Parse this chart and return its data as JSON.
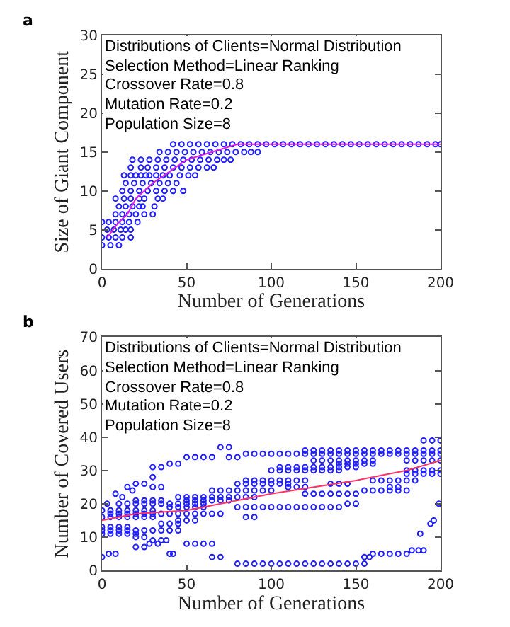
{
  "chart_data": [
    {
      "type": "scatter",
      "xlabel": "Number of Generations",
      "ylabel": "Size of Giant Component",
      "xlim": [
        0,
        200
      ],
      "ylim": [
        0,
        30
      ],
      "xticks": [
        0,
        50,
        100,
        150,
        200
      ],
      "yticks": [
        0,
        5,
        10,
        15,
        20,
        25,
        30
      ],
      "annotations": [
        "a",
        "Distributions of Clients=Normal Distribution",
        "Selection Method=Linear Ranking",
        "Crossover Rate=0.8",
        "Mutation Rate=0.2",
        "Population Size=8"
      ],
      "series": [
        {
          "marker": "circle",
          "color": "#2020ff",
          "x": [
            0,
            5,
            10,
            0,
            4,
            8,
            12,
            17,
            3,
            7,
            11,
            14,
            17,
            0,
            4,
            8,
            12,
            16,
            21,
            8,
            12,
            16,
            20,
            25,
            30,
            10,
            14,
            18,
            22,
            24,
            31,
            8,
            13,
            17,
            22,
            25,
            33,
            36,
            12,
            17,
            22,
            27,
            32,
            37,
            42,
            48,
            14,
            19,
            24,
            29,
            34,
            39,
            44,
            13,
            17,
            20,
            23,
            26,
            28,
            32,
            36,
            40,
            46,
            51,
            55,
            17,
            23,
            27,
            32,
            37,
            42,
            47,
            52,
            57,
            62,
            66,
            18,
            23,
            28,
            33,
            38,
            43,
            48,
            53,
            58,
            63,
            68,
            72,
            76,
            34,
            39,
            44,
            49,
            54,
            59,
            64,
            69,
            74,
            79,
            84,
            88,
            92,
            42,
            47,
            52,
            57,
            62,
            67,
            72,
            77,
            82,
            87,
            92,
            97,
            102,
            107,
            112,
            117,
            122,
            127,
            132,
            137,
            142,
            147,
            152,
            157,
            162,
            167,
            172,
            177,
            182,
            187,
            192,
            197,
            200
          ],
          "values": [
            3,
            3,
            3,
            4,
            4,
            4,
            4,
            4,
            5,
            5,
            5,
            5,
            5,
            6,
            6,
            6,
            6,
            6,
            6,
            7,
            7,
            7,
            7,
            7,
            7,
            8,
            8,
            8,
            8,
            8,
            8,
            9,
            9,
            9,
            9,
            9,
            9,
            9,
            10,
            10,
            10,
            10,
            10,
            10,
            10,
            10,
            11,
            11,
            11,
            11,
            11,
            11,
            11,
            12,
            12,
            12,
            12,
            12,
            12,
            12,
            12,
            12,
            12,
            12,
            12,
            13,
            13,
            13,
            13,
            13,
            13,
            13,
            13,
            13,
            13,
            13,
            14,
            14,
            14,
            14,
            14,
            14,
            14,
            14,
            14,
            14,
            14,
            14,
            14,
            15,
            15,
            15,
            15,
            15,
            15,
            15,
            15,
            15,
            15,
            15,
            15,
            15,
            16,
            16,
            16,
            16,
            16,
            16,
            16,
            16,
            16,
            16,
            16,
            16,
            16,
            16,
            16,
            16,
            16,
            16,
            16,
            16,
            16,
            16,
            16,
            16,
            16,
            16,
            16,
            16,
            16,
            16,
            16,
            16,
            16
          ]
        },
        {
          "type": "line",
          "color": "#e020e0",
          "x": [
            3,
            10,
            15,
            20,
            30,
            40,
            50,
            65,
            80,
            120,
            200
          ],
          "values": [
            4,
            6,
            7,
            9,
            11,
            12.5,
            14,
            15,
            16,
            16,
            16
          ]
        }
      ]
    },
    {
      "type": "scatter",
      "xlabel": "Number of Generations",
      "ylabel": "Number of Covered Users",
      "xlim": [
        0,
        200
      ],
      "ylim": [
        0,
        70
      ],
      "xticks": [
        0,
        50,
        100,
        150,
        200
      ],
      "yticks": [
        0,
        10,
        20,
        30,
        40,
        50,
        60,
        70
      ],
      "annotations": [
        "b",
        "Distributions of Clients=Normal Distribution",
        "Selection Method=Linear Ranking",
        "Crossover Rate=0.8",
        "Mutation Rate=0.2",
        "Population Size=8"
      ],
      "series": [
        {
          "marker": "circle",
          "color": "#2020ff",
          "x": [
            80,
            85,
            90,
            95,
            100,
            105,
            110,
            115,
            120,
            125,
            130,
            135,
            140,
            145,
            150,
            155,
            0,
            65,
            70,
            155,
            158,
            4,
            8,
            40,
            42,
            160,
            165,
            170,
            175,
            180,
            183,
            187,
            190,
            20,
            25,
            28,
            33,
            50,
            55,
            60,
            65,
            30,
            35,
            38,
            20,
            25,
            0,
            5,
            10,
            15,
            20,
            188,
            0,
            5,
            10,
            15,
            20,
            25,
            30,
            35,
            40,
            45,
            0,
            5,
            10,
            15,
            35,
            40,
            45,
            194,
            45,
            50,
            55,
            196,
            0,
            5,
            10,
            15,
            20,
            25,
            30,
            85,
            90,
            5,
            10,
            15,
            20,
            25,
            30,
            35,
            40,
            45,
            50,
            55,
            60,
            65,
            70,
            0,
            5,
            10,
            15,
            20,
            25,
            30,
            40,
            45,
            50,
            55,
            60,
            80,
            85,
            90,
            95,
            100,
            105,
            110,
            115,
            120,
            125,
            130,
            135,
            140,
            10,
            15,
            20,
            25,
            30,
            35,
            40,
            45,
            50,
            55,
            60,
            145,
            150,
            199,
            20,
            25,
            30,
            35,
            50,
            55,
            60,
            65,
            70,
            75,
            45,
            50,
            55,
            60,
            65,
            70,
            75,
            80,
            85,
            90,
            120,
            125,
            130,
            135,
            140,
            145,
            150,
            65,
            70,
            75,
            80,
            85,
            90,
            95,
            100,
            155,
            160,
            165,
            170,
            175,
            180,
            30,
            35,
            110,
            115,
            120,
            170,
            175,
            20,
            25,
            80,
            85,
            90,
            95,
            100,
            105,
            110,
            135,
            140,
            145,
            85,
            90,
            95,
            100,
            105,
            110,
            115,
            120,
            160,
            165,
            170,
            175,
            180,
            185,
            30,
            180,
            185,
            190,
            195,
            200,
            100,
            105,
            110,
            115,
            120,
            125,
            130,
            135,
            140,
            180,
            185,
            190,
            195,
            200,
            30,
            35,
            105,
            110,
            115,
            120,
            125,
            130,
            135,
            140,
            145,
            150,
            40,
            45,
            140,
            145,
            150,
            155,
            160,
            125,
            130,
            135,
            140,
            145,
            150,
            155,
            160,
            180,
            185,
            190,
            195,
            200,
            50,
            55,
            60,
            65,
            75,
            80,
            85,
            90,
            95,
            100,
            105,
            110,
            115,
            120,
            125,
            130,
            135,
            140,
            145,
            150,
            155,
            160,
            165,
            170,
            175,
            180,
            185,
            190,
            195,
            200,
            120,
            125,
            130,
            135,
            140,
            145,
            150,
            155,
            160,
            165,
            170,
            175,
            180,
            185,
            190,
            195,
            200,
            70,
            75,
            190,
            195,
            200,
            8,
            12,
            15,
            3,
            18
          ],
          "values": [
            2,
            2,
            2,
            2,
            2,
            2,
            2,
            2,
            2,
            2,
            2,
            2,
            2,
            2,
            2,
            2,
            4,
            4,
            4,
            4,
            4,
            5,
            5,
            5,
            5,
            5,
            5,
            5,
            5,
            5,
            6,
            6,
            6,
            7,
            7,
            8,
            8,
            8,
            8,
            8,
            8,
            9,
            9,
            9,
            10,
            10,
            11,
            11,
            11,
            11,
            11,
            11,
            12,
            12,
            12,
            12,
            12,
            12,
            12,
            12,
            12,
            12,
            13,
            13,
            13,
            13,
            14,
            14,
            14,
            14,
            15,
            15,
            15,
            15,
            16,
            16,
            16,
            16,
            16,
            16,
            16,
            16,
            16,
            17,
            17,
            17,
            17,
            17,
            17,
            17,
            17,
            17,
            17,
            17,
            17,
            17,
            17,
            18,
            18,
            18,
            18,
            18,
            18,
            18,
            19,
            19,
            19,
            19,
            19,
            19,
            19,
            19,
            19,
            19,
            19,
            19,
            19,
            19,
            19,
            19,
            19,
            19,
            20,
            20,
            20,
            20,
            20,
            20,
            20,
            20,
            20,
            20,
            20,
            20,
            20,
            20,
            21,
            21,
            21,
            21,
            21,
            21,
            21,
            21,
            21,
            21,
            22,
            22,
            22,
            22,
            22,
            22,
            22,
            22,
            22,
            22,
            23,
            23,
            23,
            23,
            23,
            23,
            23,
            24,
            24,
            24,
            24,
            24,
            24,
            24,
            24,
            24,
            24,
            24,
            24,
            24,
            24,
            25,
            25,
            25,
            25,
            25,
            25,
            25,
            26,
            26,
            26,
            26,
            26,
            26,
            26,
            26,
            26,
            26,
            26,
            26,
            27,
            27,
            27,
            27,
            27,
            27,
            27,
            27,
            27,
            27,
            27,
            27,
            27,
            27,
            28,
            29,
            29,
            29,
            29,
            29,
            30,
            30,
            30,
            30,
            30,
            30,
            30,
            30,
            30,
            30,
            30,
            30,
            30,
            30,
            31,
            31,
            31,
            31,
            31,
            31,
            31,
            31,
            31,
            31,
            31,
            31,
            32,
            32,
            32,
            32,
            32,
            32,
            32,
            33,
            33,
            33,
            33,
            33,
            33,
            33,
            33,
            33,
            33,
            33,
            33,
            33,
            34,
            34,
            34,
            34,
            34,
            34,
            35,
            35,
            35,
            35,
            35,
            35,
            35,
            35,
            35,
            35,
            35,
            35,
            35,
            35,
            35,
            35,
            35,
            35,
            35,
            35,
            35,
            35,
            35,
            35,
            36,
            36,
            36,
            36,
            36,
            36,
            36,
            36,
            36,
            36,
            36,
            36,
            36,
            36,
            36,
            36,
            36,
            37,
            37,
            39,
            39,
            39,
            23,
            22,
            25,
            20,
            24
          ]
        },
        {
          "type": "line",
          "color": "#ff3366",
          "x": [
            0,
            20,
            50,
            100,
            150,
            180,
            200
          ],
          "values": [
            15,
            17,
            18,
            23,
            27,
            30,
            33
          ]
        }
      ]
    }
  ]
}
